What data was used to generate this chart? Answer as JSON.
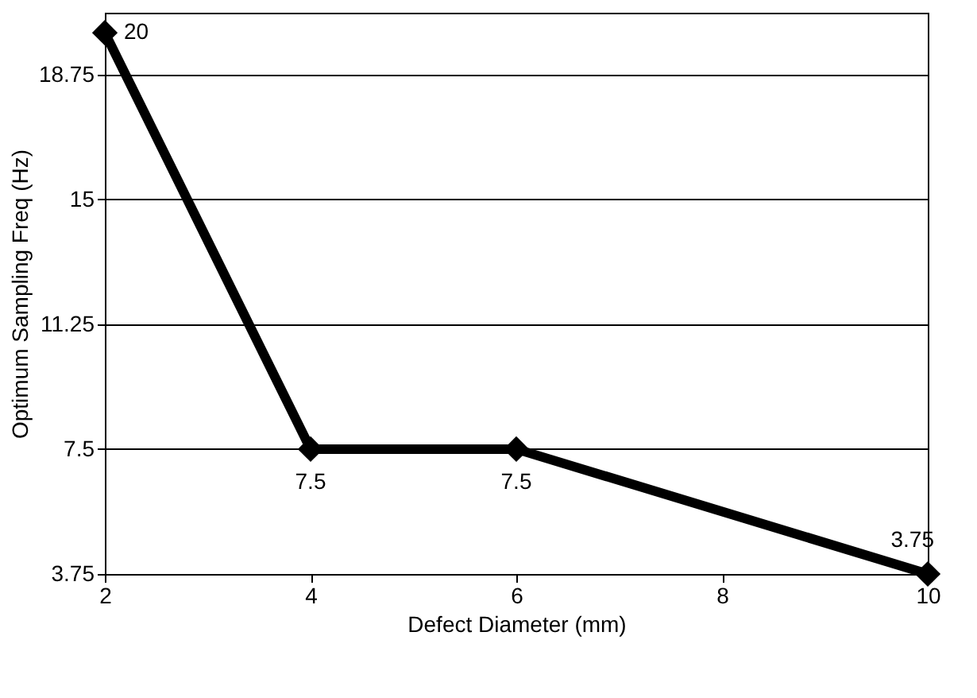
{
  "chart_data": {
    "type": "line",
    "xlabel": "Defect Diameter (mm)",
    "ylabel": "Optimum Sampling Freq (Hz)",
    "x": [
      2,
      4,
      6,
      10
    ],
    "series": [
      {
        "color": "#000000",
        "values": [
          20,
          7.5,
          7.5,
          3.75
        ]
      }
    ],
    "xlim": [
      2,
      10
    ],
    "xticks": [
      2,
      4,
      6,
      8,
      10
    ],
    "ylim": [
      3.75,
      20.6
    ],
    "yticks": [
      3.75,
      7.5,
      11.25,
      15,
      18.75
    ],
    "grid": "y",
    "marker": "diamond",
    "line_style": "solid",
    "data_labels": true
  }
}
